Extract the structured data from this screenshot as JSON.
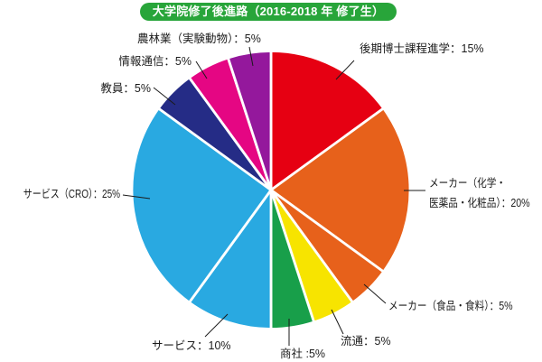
{
  "title": {
    "text": "大学院修了後進路（2016-2018 年 修了生）",
    "bg_color": "#28a53a",
    "text_color": "#ffffff"
  },
  "chart_data": {
    "type": "pie",
    "start_angle_deg": 0,
    "direction": "clockwise",
    "total": 100,
    "leader_line_color": "#1a1a1a",
    "slices": [
      {
        "name": "doctoral-course",
        "label": "後期博士課程進学",
        "value": 15,
        "color": "#e60012",
        "display": "後期博士課程進学：15%"
      },
      {
        "name": "maker-chemical",
        "label": "メーカー（化学・医薬品・化粧品）",
        "value": 20,
        "color": "#e7611b",
        "display": "メーカー（化学・\n医薬品・化粧品）：20%"
      },
      {
        "name": "maker-food",
        "label": "メーカー（食品・食料）",
        "value": 5,
        "color": "#e7611b",
        "display": "メーカー（食品・食料）：5%"
      },
      {
        "name": "distribution",
        "label": "流通",
        "value": 5,
        "color": "#f7e400",
        "display": "流通：5%"
      },
      {
        "name": "trading-company",
        "label": "商社",
        "value": 5,
        "color": "#189f4a",
        "display": "商社 :5%"
      },
      {
        "name": "service",
        "label": "サービス",
        "value": 10,
        "color": "#29a9e1",
        "display": "サービス：10%"
      },
      {
        "name": "service-cro",
        "label": "サービス（CRO）",
        "value": 25,
        "color": "#29a9e1",
        "display": "サービス（CRO）：25%"
      },
      {
        "name": "teacher",
        "label": "教員",
        "value": 5,
        "color": "#252c86",
        "display": "教員：5%"
      },
      {
        "name": "it-communication",
        "label": "情報通信",
        "value": 5,
        "color": "#e50683",
        "display": "情報通信：5%"
      },
      {
        "name": "agriculture",
        "label": "農林業（実験動物）",
        "value": 5,
        "color": "#94189c",
        "display": "農林業（実験動物）：5%"
      }
    ]
  }
}
